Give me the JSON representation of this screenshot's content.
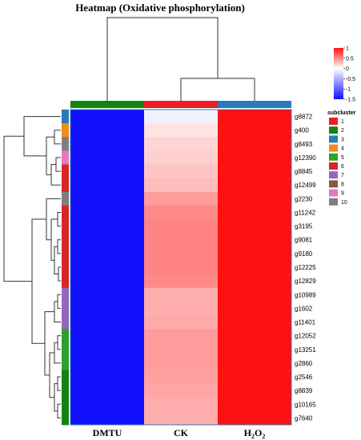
{
  "chart_data": {
    "type": "heatmap",
    "title": "Heatmap (Oxidative phosphorylation)",
    "columns": [
      "DMTU",
      "CK",
      "H2O2"
    ],
    "column_colors": [
      "#138413",
      "#ee1c25",
      "#2a7ab8"
    ],
    "rows": [
      "g8872",
      "g400",
      "g8493",
      "g12390",
      "g8845",
      "g12499",
      "g2230",
      "g11242",
      "g3195",
      "g9081",
      "g9180",
      "g12225",
      "g12829",
      "g10989",
      "g1602",
      "g11401",
      "g12052",
      "g13251",
      "g2860",
      "g2546",
      "g8839",
      "g10165",
      "g7640"
    ],
    "row_subcluster": [
      3,
      4,
      10,
      9,
      6,
      6,
      10,
      6,
      6,
      6,
      6,
      6,
      6,
      7,
      7,
      7,
      5,
      5,
      5,
      2,
      2,
      2,
      2
    ],
    "values": [
      [
        -1.52,
        -0.08,
        1.58
      ],
      [
        -1.52,
        0.12,
        1.35
      ],
      [
        -1.52,
        0.18,
        1.3
      ],
      [
        -1.52,
        0.2,
        1.3
      ],
      [
        -1.52,
        0.25,
        1.3
      ],
      [
        -1.52,
        0.28,
        1.25
      ],
      [
        -1.52,
        0.42,
        1.05
      ],
      [
        -1.52,
        0.5,
        1.0
      ],
      [
        -1.52,
        0.52,
        1.0
      ],
      [
        -1.52,
        0.52,
        1.0
      ],
      [
        -1.52,
        0.52,
        1.0
      ],
      [
        -1.52,
        0.52,
        1.0
      ],
      [
        -1.52,
        0.5,
        1.0
      ],
      [
        -1.52,
        0.34,
        1.2
      ],
      [
        -1.52,
        0.34,
        1.2
      ],
      [
        -1.52,
        0.36,
        1.18
      ],
      [
        -1.52,
        0.42,
        1.12
      ],
      [
        -1.52,
        0.42,
        1.12
      ],
      [
        -1.52,
        0.42,
        1.12
      ],
      [
        -1.52,
        0.4,
        1.12
      ],
      [
        -1.52,
        0.38,
        1.15
      ],
      [
        -1.52,
        0.35,
        1.18
      ],
      [
        -1.52,
        0.34,
        1.18
      ]
    ],
    "color_scale": {
      "min": -1.5,
      "max": 1,
      "ticks": [
        1,
        0.5,
        0,
        -0.5,
        -1,
        -1.5
      ],
      "low_color": "#1010ff",
      "mid_color": "#ffffff",
      "high_color": "#ff1111"
    },
    "legend": {
      "title": "subcluster",
      "items": [
        {
          "label": "1",
          "color": "#ee1c25"
        },
        {
          "label": "2",
          "color": "#138413"
        },
        {
          "label": "3",
          "color": "#2a7ab8"
        },
        {
          "label": "4",
          "color": "#f28a1e"
        },
        {
          "label": "5",
          "color": "#2ca02c"
        },
        {
          "label": "6",
          "color": "#d62728"
        },
        {
          "label": "7",
          "color": "#9467bd"
        },
        {
          "label": "8",
          "color": "#8c564b"
        },
        {
          "label": "9",
          "color": "#e377c2"
        },
        {
          "label": "10",
          "color": "#7f7f7f"
        }
      ]
    }
  }
}
